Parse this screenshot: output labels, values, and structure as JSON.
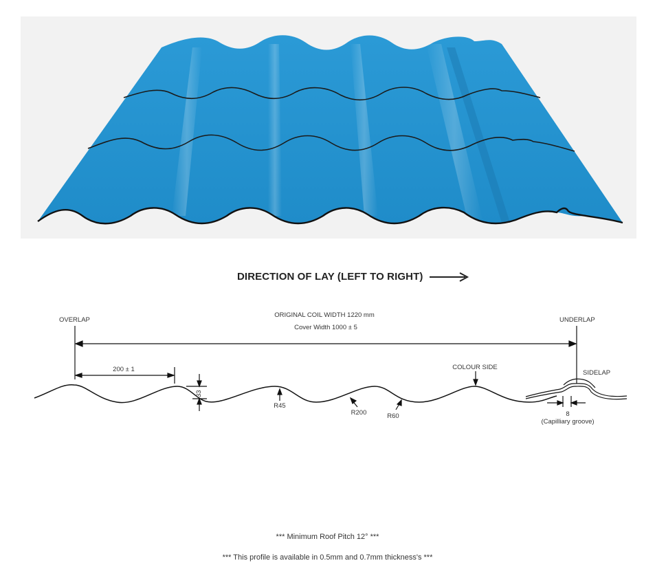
{
  "heading": "DIRECTION OF LAY (LEFT TO RIGHT)",
  "colors": {
    "sheet": "#2896d2",
    "sheet_shade": "#1f7fb8",
    "sheet_highlight": "#5cc0ec",
    "outline": "#1a1a1a",
    "background": "#f2f2f2"
  },
  "icons": {
    "lay_direction": "right-arrow-icon"
  },
  "profile_labels": {
    "overlap": "OVERLAP",
    "underlap": "UNDERLAP",
    "coil_width": "ORIGINAL COIL WIDTH 1220 mm",
    "cover_width": "Cover Width  1000 ± 5",
    "pitch_dim": "200 ± 1",
    "height_dim": "33",
    "radius_crest": "R45",
    "radius_valley": "R200",
    "radius_flank": "R60",
    "colour_side": "COLOUR SIDE",
    "sidelap": "SIDELAP",
    "groove_dim": "8",
    "groove_name": "(Capilliary groove)"
  },
  "footer": {
    "pitch_note": "*** Minimum Roof Pitch 12° ***",
    "thickness_note": "*** This profile is available in 0.5mm and 0.7mm thickness's ***"
  }
}
